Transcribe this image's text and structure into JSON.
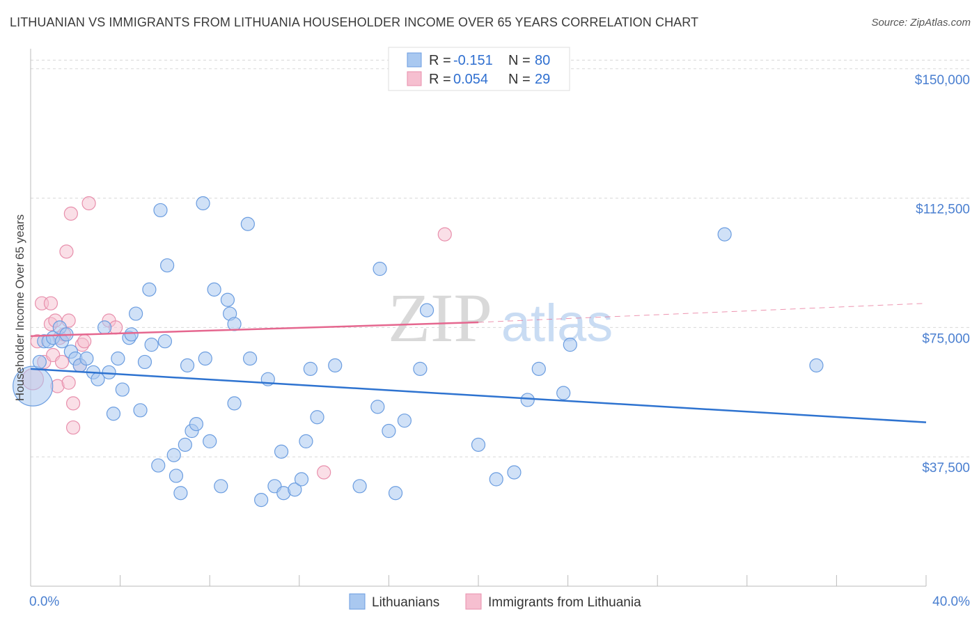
{
  "title": "LITHUANIAN VS IMMIGRANTS FROM LITHUANIA HOUSEHOLDER INCOME OVER 65 YEARS CORRELATION CHART",
  "source": "Source: ZipAtlas.com",
  "watermark": {
    "zip": "ZIP",
    "atlas": "atlas"
  },
  "colors": {
    "blue_fill": "#a9c8f0",
    "blue_stroke": "#6b9de0",
    "blue_line": "#2e73d0",
    "pink_fill": "#f6bfd0",
    "pink_stroke": "#e88fac",
    "pink_line": "#e5678f",
    "axis_label": "#4a7fd0",
    "grid": "#d8d8d8"
  },
  "legend": {
    "series": [
      {
        "r_label": "R =",
        "r_value": "-0.151",
        "n_label": "N =",
        "n_value": "80"
      },
      {
        "r_label": "R =",
        "r_value": "0.054",
        "n_label": "N =",
        "n_value": "29"
      }
    ]
  },
  "chart_data": {
    "type": "scatter",
    "title": "LITHUANIAN VS IMMIGRANTS FROM LITHUANIA HOUSEHOLDER INCOME OVER 65 YEARS CORRELATION CHART",
    "xlabel": "",
    "ylabel": "Householder Income Over 65 years",
    "xlim": [
      0,
      40
    ],
    "ylim": [
      0,
      155000
    ],
    "x_tick_labels": [
      "0.0%",
      "40.0%"
    ],
    "y_ticks": [
      37500,
      75000,
      112500,
      150000
    ],
    "y_tick_labels": [
      "$37,500",
      "$75,000",
      "$112,500",
      "$150,000"
    ],
    "grid": "horizontal-dashed",
    "legend_position": "top-center",
    "series": [
      {
        "name": "Lithuanians",
        "color": "#a9c8f0",
        "trend": {
          "x": [
            0,
            40
          ],
          "y": [
            63000,
            47500
          ],
          "dashed_from": null
        },
        "points": [
          [
            0.1,
            58000,
            3
          ],
          [
            0.4,
            65000,
            1
          ],
          [
            0.6,
            71000,
            1
          ],
          [
            0.8,
            71000,
            1
          ],
          [
            1.0,
            72000,
            1
          ],
          [
            1.3,
            75000,
            1
          ],
          [
            1.4,
            71000,
            1
          ],
          [
            1.6,
            73000,
            1
          ],
          [
            1.8,
            68000,
            1
          ],
          [
            2.0,
            66000,
            1
          ],
          [
            2.2,
            64000,
            1
          ],
          [
            2.5,
            66000,
            1
          ],
          [
            2.8,
            62000,
            1
          ],
          [
            3.0,
            60000,
            1
          ],
          [
            3.3,
            75000,
            1
          ],
          [
            3.5,
            62000,
            1
          ],
          [
            3.9,
            66000,
            1
          ],
          [
            4.1,
            57000,
            1
          ],
          [
            3.7,
            50000,
            1
          ],
          [
            4.4,
            72000,
            1
          ],
          [
            4.5,
            73000,
            1
          ],
          [
            4.7,
            79000,
            1
          ],
          [
            4.9,
            51000,
            1
          ],
          [
            5.1,
            65000,
            1
          ],
          [
            5.3,
            86000,
            1
          ],
          [
            5.4,
            70000,
            1
          ],
          [
            5.7,
            35000,
            1
          ],
          [
            5.8,
            109000,
            1
          ],
          [
            6.0,
            71000,
            1
          ],
          [
            6.1,
            93000,
            1
          ],
          [
            6.4,
            38000,
            1
          ],
          [
            6.5,
            32000,
            1
          ],
          [
            6.7,
            27000,
            1
          ],
          [
            6.9,
            41000,
            1
          ],
          [
            7.0,
            64000,
            1
          ],
          [
            7.2,
            45000,
            1
          ],
          [
            7.4,
            47000,
            1
          ],
          [
            7.7,
            111000,
            1
          ],
          [
            7.8,
            66000,
            1
          ],
          [
            8.0,
            42000,
            1
          ],
          [
            8.2,
            86000,
            1
          ],
          [
            8.5,
            29000,
            1
          ],
          [
            8.8,
            83000,
            1
          ],
          [
            8.9,
            79000,
            1
          ],
          [
            9.1,
            76000,
            1
          ],
          [
            9.1,
            53000,
            1
          ],
          [
            9.7,
            105000,
            1
          ],
          [
            9.8,
            66000,
            1
          ],
          [
            10.3,
            25000,
            1
          ],
          [
            10.6,
            60000,
            1
          ],
          [
            10.9,
            29000,
            1
          ],
          [
            11.2,
            39000,
            1
          ],
          [
            11.3,
            27000,
            1
          ],
          [
            11.8,
            28000,
            1
          ],
          [
            12.1,
            31000,
            1
          ],
          [
            12.3,
            42000,
            1
          ],
          [
            12.5,
            63000,
            1
          ],
          [
            12.8,
            49000,
            1
          ],
          [
            13.6,
            64000,
            1
          ],
          [
            14.7,
            29000,
            1
          ],
          [
            15.5,
            52000,
            1
          ],
          [
            15.6,
            92000,
            1
          ],
          [
            16.0,
            45000,
            1
          ],
          [
            16.3,
            27000,
            1
          ],
          [
            16.7,
            48000,
            1
          ],
          [
            17.4,
            63000,
            1
          ],
          [
            17.7,
            80000,
            1
          ],
          [
            20.0,
            41000,
            1
          ],
          [
            20.8,
            31000,
            1
          ],
          [
            21.6,
            33000,
            1
          ],
          [
            22.2,
            54000,
            1
          ],
          [
            22.7,
            63000,
            1
          ],
          [
            23.8,
            56000,
            1
          ],
          [
            24.1,
            70000,
            1
          ],
          [
            31.0,
            102000,
            1
          ],
          [
            35.1,
            64000,
            1
          ]
        ]
      },
      {
        "name": "Immigrants from Lithuania",
        "color": "#f6bfd0",
        "trend": {
          "x": [
            0,
            20,
            40
          ],
          "y": [
            72500,
            76500,
            82000
          ],
          "dashed_from": 20
        },
        "points": [
          [
            0.1,
            60000,
            1.6
          ],
          [
            0.3,
            71000,
            1
          ],
          [
            0.5,
            82000,
            1
          ],
          [
            0.6,
            65000,
            1
          ],
          [
            0.9,
            76000,
            1
          ],
          [
            0.9,
            82000,
            1
          ],
          [
            1.0,
            67000,
            1
          ],
          [
            1.1,
            77000,
            1
          ],
          [
            1.2,
            58000,
            1
          ],
          [
            1.3,
            72000,
            1
          ],
          [
            1.4,
            65000,
            1
          ],
          [
            1.5,
            73000,
            1
          ],
          [
            1.6,
            97000,
            1
          ],
          [
            1.7,
            59000,
            1
          ],
          [
            1.7,
            77000,
            1
          ],
          [
            1.8,
            108000,
            1
          ],
          [
            1.9,
            53000,
            1
          ],
          [
            1.9,
            46000,
            1
          ],
          [
            2.2,
            64000,
            1
          ],
          [
            2.3,
            70000,
            1
          ],
          [
            2.4,
            71000,
            1
          ],
          [
            2.6,
            111000,
            1
          ],
          [
            3.5,
            77000,
            1
          ],
          [
            3.8,
            75000,
            1
          ],
          [
            13.1,
            33000,
            1
          ],
          [
            18.5,
            102000,
            1
          ]
        ]
      }
    ]
  },
  "bottom_legend": [
    "Lithuanians",
    "Immigrants from Lithuania"
  ]
}
